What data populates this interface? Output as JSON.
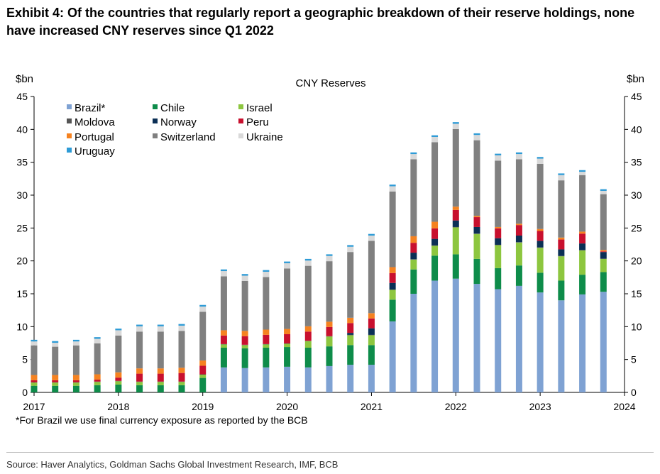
{
  "title_line1": "Exhibit 4: Of the countries that regularly report a geographic breakdown of their reserve holdings, none",
  "title_line2": "have increased CNY reserves since Q1 2022",
  "footnote": "*For Brazil we use final currency exposure as reported by the BCB",
  "source": "Source: Haver Analytics, Goldman Sachs Global Investment Research, IMF, BCB",
  "chart_data": {
    "type": "bar",
    "stacked": true,
    "title": "CNY Reserves",
    "ylabel_left": "$bn",
    "ylabel_right": "$bn",
    "ylim": [
      0,
      45
    ],
    "yticks": [
      "0",
      "5",
      "10",
      "15",
      "20",
      "25",
      "30",
      "35",
      "40",
      "45"
    ],
    "xticks": [
      "2017",
      "2018",
      "2019",
      "2020",
      "2021",
      "2022",
      "2023",
      "2024"
    ],
    "x_range": [
      2017,
      2024
    ],
    "categories": [
      "Q1 2017",
      "Q2 2017",
      "Q3 2017",
      "Q4 2017",
      "Q1 2018",
      "Q2 2018",
      "Q3 2018",
      "Q4 2018",
      "Q1 2019",
      "Q2 2019",
      "Q3 2019",
      "Q4 2019",
      "Q1 2020",
      "Q2 2020",
      "Q3 2020",
      "Q4 2020",
      "Q1 2021",
      "Q2 2021",
      "Q3 2021",
      "Q4 2021",
      "Q1 2022",
      "Q2 2022",
      "Q3 2022",
      "Q4 2022",
      "Q1 2023",
      "Q2 2023",
      "Q3 2023",
      "Q4 2023"
    ],
    "x": [
      2017.0,
      2017.25,
      2017.5,
      2017.75,
      2018.0,
      2018.25,
      2018.5,
      2018.75,
      2019.0,
      2019.25,
      2019.5,
      2019.75,
      2020.0,
      2020.25,
      2020.5,
      2020.75,
      2021.0,
      2021.25,
      2021.5,
      2021.75,
      2022.0,
      2022.25,
      2022.5,
      2022.75,
      2023.0,
      2023.25,
      2023.5,
      2023.75
    ],
    "series": [
      {
        "name": "Brazil*",
        "color": "#7fa2d3",
        "values": [
          0,
          0,
          0,
          0,
          0,
          0,
          0,
          0,
          0,
          3.8,
          3.7,
          3.8,
          3.9,
          3.8,
          4.0,
          4.2,
          4.2,
          10.8,
          15.0,
          17.0,
          17.3,
          16.5,
          15.7,
          16.2,
          15.2,
          14.0,
          14.9,
          15.3
        ]
      },
      {
        "name": "Chile",
        "color": "#0e8c4a",
        "values": [
          1.0,
          1.0,
          1.0,
          1.1,
          1.2,
          1.1,
          1.1,
          1.1,
          2.2,
          3.0,
          3.0,
          3.0,
          3.0,
          3.0,
          3.0,
          3.0,
          3.0,
          3.3,
          3.7,
          3.8,
          3.7,
          3.8,
          3.2,
          3.1,
          3.0,
          3.0,
          3.0,
          3.0
        ]
      },
      {
        "name": "Israel",
        "color": "#8dc63f",
        "values": [
          0.5,
          0.5,
          0.5,
          0.5,
          0.5,
          0.5,
          0.5,
          0.5,
          0.5,
          0.5,
          0.5,
          0.5,
          0.5,
          1.0,
          1.5,
          1.5,
          1.5,
          1.5,
          1.5,
          1.5,
          4.1,
          3.8,
          3.5,
          3.5,
          3.8,
          3.7,
          3.7,
          2.0
        ]
      },
      {
        "name": "Moldova",
        "color": "#555555",
        "values": [
          0.05,
          0.05,
          0.05,
          0.05,
          0.05,
          0.05,
          0.05,
          0.05,
          0.05,
          0.05,
          0.05,
          0.05,
          0.05,
          0.05,
          0.05,
          0.05,
          0.05,
          0.05,
          0.05,
          0.05,
          0.05,
          0.05,
          0.05,
          0.05,
          0.05,
          0.05,
          0.05,
          0.05
        ]
      },
      {
        "name": "Norway",
        "color": "#0b2f55",
        "values": [
          0,
          0,
          0,
          0,
          0,
          0,
          0,
          0,
          0,
          0,
          0,
          0,
          0,
          0,
          0,
          0.3,
          1.0,
          1.0,
          1.0,
          1.0,
          1.0,
          1.0,
          1.0,
          1.0,
          1.0,
          1.0,
          1.0,
          1.0
        ]
      },
      {
        "name": "Peru",
        "color": "#c8102e",
        "values": [
          0.3,
          0.3,
          0.3,
          0.3,
          0.5,
          1.2,
          1.2,
          1.3,
          1.3,
          1.3,
          1.3,
          1.4,
          1.4,
          1.4,
          1.4,
          1.5,
          1.5,
          1.5,
          1.5,
          1.6,
          1.6,
          1.5,
          1.5,
          1.6,
          1.5,
          1.5,
          1.5,
          0.1
        ]
      },
      {
        "name": "Portugal",
        "color": "#f58220",
        "values": [
          0.8,
          0.8,
          0.8,
          0.8,
          0.8,
          0.8,
          0.8,
          0.8,
          0.8,
          0.8,
          0.8,
          0.8,
          0.8,
          0.8,
          0.8,
          0.8,
          0.8,
          0.9,
          1.0,
          1.0,
          0.5,
          0.2,
          0.2,
          0.2,
          0.3,
          0.3,
          0.3,
          0.2
        ]
      },
      {
        "name": "Switzerland",
        "color": "#808080",
        "values": [
          4.5,
          4.3,
          4.5,
          4.7,
          5.6,
          5.6,
          5.6,
          5.6,
          7.4,
          8.2,
          7.6,
          8.0,
          9.2,
          9.2,
          9.2,
          10.0,
          11.0,
          11.5,
          11.7,
          12.1,
          11.8,
          11.5,
          10.1,
          9.8,
          9.9,
          8.7,
          8.6,
          8.5
        ]
      },
      {
        "name": "Ukraine",
        "color": "#d9d9d9",
        "values": [
          0.6,
          0.6,
          0.6,
          0.7,
          0.8,
          0.8,
          0.8,
          0.8,
          0.8,
          0.8,
          0.8,
          0.8,
          0.8,
          0.8,
          0.8,
          0.8,
          0.8,
          0.8,
          0.8,
          0.8,
          0.8,
          0.8,
          0.8,
          0.8,
          0.8,
          0.8,
          0.5,
          0.5
        ]
      },
      {
        "name": "Uruguay",
        "color": "#2e9bd6",
        "values": [
          0.25,
          0.25,
          0.25,
          0.25,
          0.25,
          0.25,
          0.25,
          0.25,
          0.25,
          0.25,
          0.25,
          0.25,
          0.25,
          0.25,
          0.25,
          0.25,
          0.25,
          0.25,
          0.25,
          0.25,
          0.25,
          0.25,
          0.25,
          0.25,
          0.25,
          0.25,
          0.25,
          0.25
        ]
      }
    ],
    "legend_position": "top-left"
  }
}
